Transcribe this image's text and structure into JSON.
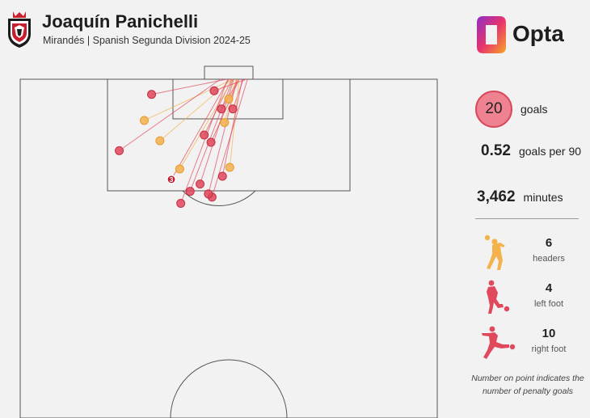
{
  "header": {
    "player_name": "Joaquín Panichelli",
    "subtitle": "Mirandés | Spanish Segunda Division 2024-25"
  },
  "brand": {
    "name": "Opta"
  },
  "stats": {
    "goals_value": "20",
    "goals_label": "goals",
    "per90_value": "0.52",
    "per90_label": "goals per 90",
    "minutes_value": "3,462",
    "minutes_label": "minutes"
  },
  "goal_types": [
    {
      "count": "6",
      "label": "headers",
      "icon": "header-player-icon",
      "color": "#f4b24d"
    },
    {
      "count": "4",
      "label": "left foot",
      "icon": "left-foot-player-icon",
      "color": "#e0485c"
    },
    {
      "count": "10",
      "label": "right foot",
      "icon": "right-foot-player-icon",
      "color": "#e0485c"
    }
  ],
  "note": "Number on point indicates the number of penalty goals",
  "colors": {
    "header": "#f4b24d",
    "left_foot": "#e0485c",
    "right_foot": "#e0485c",
    "penalty": "#c01a2e",
    "stat_circle": "#ee8290"
  },
  "chart_data": {
    "type": "scatter",
    "description_units": "pitch yards: x from left touchline (0-80), y from goal line (0-60)",
    "shots": [
      {
        "x": 23.8,
        "y": 7.9,
        "end_x": 40.8,
        "end_y": 0,
        "type": "header"
      },
      {
        "x": 25.2,
        "y": 2.9,
        "end_x": 39.6,
        "end_y": 0,
        "type": "right foot"
      },
      {
        "x": 19.0,
        "y": 13.7,
        "end_x": 38.4,
        "end_y": 0,
        "type": "right foot"
      },
      {
        "x": 26.8,
        "y": 11.8,
        "end_x": 40.6,
        "end_y": 0,
        "type": "header"
      },
      {
        "x": 40.0,
        "y": 3.8,
        "end_x": 41.6,
        "end_y": 0,
        "type": "header"
      },
      {
        "x": 39.2,
        "y": 8.3,
        "end_x": 41.4,
        "end_y": 0,
        "type": "header"
      },
      {
        "x": 36.6,
        "y": 12.1,
        "end_x": 42.0,
        "end_y": 0,
        "type": "left foot"
      },
      {
        "x": 35.3,
        "y": 10.7,
        "end_x": 40.6,
        "end_y": 0,
        "type": "right foot"
      },
      {
        "x": 37.2,
        "y": 2.2,
        "end_x": 43.4,
        "end_y": 0,
        "type": "right foot"
      },
      {
        "x": 40.8,
        "y": 5.7,
        "end_x": 42.8,
        "end_y": 0,
        "type": "right foot"
      },
      {
        "x": 38.6,
        "y": 5.7,
        "end_x": 42.0,
        "end_y": 0,
        "type": "left foot"
      },
      {
        "x": 40.2,
        "y": 16.9,
        "end_x": 42.0,
        "end_y": 0,
        "type": "header"
      },
      {
        "x": 38.8,
        "y": 18.6,
        "end_x": 42.6,
        "end_y": 0,
        "type": "right foot"
      },
      {
        "x": 34.5,
        "y": 20.1,
        "end_x": 41.0,
        "end_y": 0,
        "type": "right foot"
      },
      {
        "x": 36.8,
        "y": 22.6,
        "end_x": 43.6,
        "end_y": 0,
        "type": "left foot"
      },
      {
        "x": 30.6,
        "y": 17.2,
        "end_x": 40.8,
        "end_y": 0,
        "type": "header"
      },
      {
        "x": 36.1,
        "y": 22.0,
        "end_x": 41.6,
        "end_y": 0,
        "type": "left foot"
      },
      {
        "x": 32.6,
        "y": 21.5,
        "end_x": 40.8,
        "end_y": 0,
        "type": "right foot"
      },
      {
        "x": 30.8,
        "y": 23.8,
        "end_x": 39.8,
        "end_y": 0,
        "type": "right foot"
      },
      {
        "x": 29.0,
        "y": 19.2,
        "end_x": 40.0,
        "end_y": 0,
        "type": "right foot",
        "penalties": 3,
        "label": "3"
      }
    ]
  }
}
